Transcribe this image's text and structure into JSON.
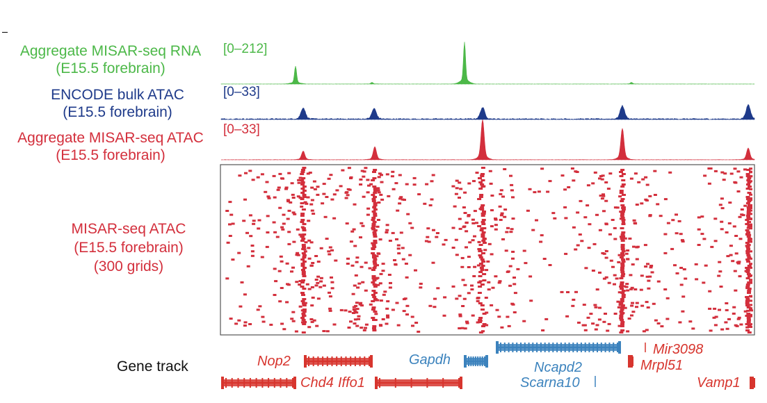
{
  "colors": {
    "rna": "#4cb848",
    "bulk_atac": "#1e3a8a",
    "atac": "#d32f3c",
    "gene_red": "#d7352e",
    "gene_blue": "#3c83bd",
    "text_dark": "#111111"
  },
  "tracks": [
    {
      "id": "rna",
      "line1": "Aggregate MISAR-seq RNA",
      "line2": "(E15.5 forebrain)",
      "range": "[0–212]",
      "peaks": [
        [
          425,
          0.32
        ],
        [
          668,
          0.75
        ],
        [
          535,
          0.03
        ],
        [
          908,
          0.03
        ]
      ]
    },
    {
      "id": "bulk_atac",
      "line1": "ENCODE bulk ATAC",
      "line2": "(E15.5 forebrain)",
      "range": "[0–33]",
      "peaks": [
        [
          436,
          0.32
        ],
        [
          538,
          0.3
        ],
        [
          694,
          0.33
        ],
        [
          895,
          0.38
        ],
        [
          1076,
          0.4
        ]
      ]
    },
    {
      "id": "atac",
      "line1": "Aggregate MISAR-seq ATAC",
      "line2": "(E15.5 forebrain)",
      "range": "[0–33]",
      "peaks": [
        [
          436,
          0.2
        ],
        [
          539,
          0.3
        ],
        [
          694,
          0.92
        ],
        [
          895,
          0.72
        ],
        [
          1076,
          0.27
        ]
      ]
    }
  ],
  "heatmap": {
    "line1": "MISAR-seq ATAC",
    "line2": "(E15.5 forebrain)",
    "line3": "(300 grids)",
    "columns": [
      436,
      538,
      693,
      895,
      1076
    ]
  },
  "gene_track": {
    "label": "Gene track",
    "genes": [
      {
        "name": "Nop2",
        "color": "red"
      },
      {
        "name": "Chd4",
        "color": "red"
      },
      {
        "name": "Iffo1",
        "color": "red"
      },
      {
        "name": "Gapdh",
        "color": "blue"
      },
      {
        "name": "Ncapd2",
        "color": "blue"
      },
      {
        "name": "Scarna10",
        "color": "blue"
      },
      {
        "name": "Mir3098",
        "color": "red"
      },
      {
        "name": "Mrpl51",
        "color": "red"
      },
      {
        "name": "Vamp1",
        "color": "red"
      }
    ]
  }
}
